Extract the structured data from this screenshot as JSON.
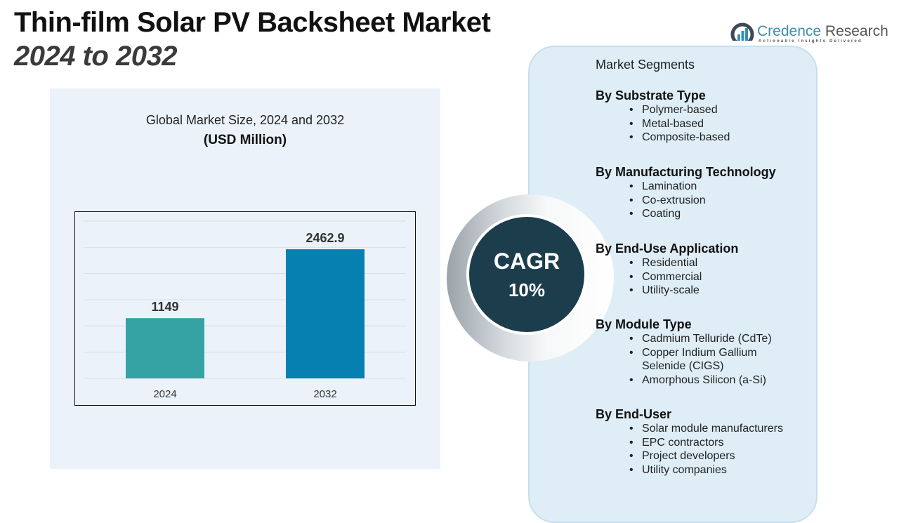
{
  "header": {
    "title_line1": "Thin-film Solar PV Backsheet Market",
    "title_line2": "2024 to 2032"
  },
  "logo": {
    "icon": "bar-chart-circle-icon",
    "name_part1": "Credence",
    "name_part2": " Research",
    "tagline": "Actionable Insights Delivered",
    "brand_color": "#3a8fb0"
  },
  "chart_data": {
    "type": "bar",
    "title": "Global Market Size, 2024 and 2032",
    "subtitle": "(USD Million)",
    "categories": [
      "2024",
      "2032"
    ],
    "values": [
      1149,
      2462.9
    ],
    "value_labels": [
      "1149",
      "2462.9"
    ],
    "colors": [
      "#35a3a3",
      "#0680b0"
    ],
    "xlabel": "",
    "ylabel": "",
    "ylim": [
      0,
      3000
    ],
    "grid": true,
    "gridline_count": 7,
    "legend": "none"
  },
  "cagr": {
    "label": "CAGR",
    "value": "10%"
  },
  "segments": {
    "heading": "Market Segments",
    "groups": [
      {
        "title": "By Substrate Type",
        "items": [
          "Polymer-based",
          "Metal-based",
          "Composite-based"
        ]
      },
      {
        "title": "By Manufacturing Technology",
        "items": [
          "Lamination",
          "Co-extrusion",
          "Coating"
        ]
      },
      {
        "title": "By End-Use Application",
        "items": [
          "Residential",
          "Commercial",
          "Utility-scale"
        ]
      },
      {
        "title": "By Module Type",
        "items": [
          "Cadmium Telluride (CdTe)",
          "Copper Indium Gallium Selenide (CIGS)",
          "Amorphous Silicon (a-Si)"
        ]
      },
      {
        "title": "By End-User",
        "items": [
          "Solar module manufacturers",
          "EPC contractors",
          "Project developers",
          "Utility companies"
        ]
      }
    ]
  }
}
